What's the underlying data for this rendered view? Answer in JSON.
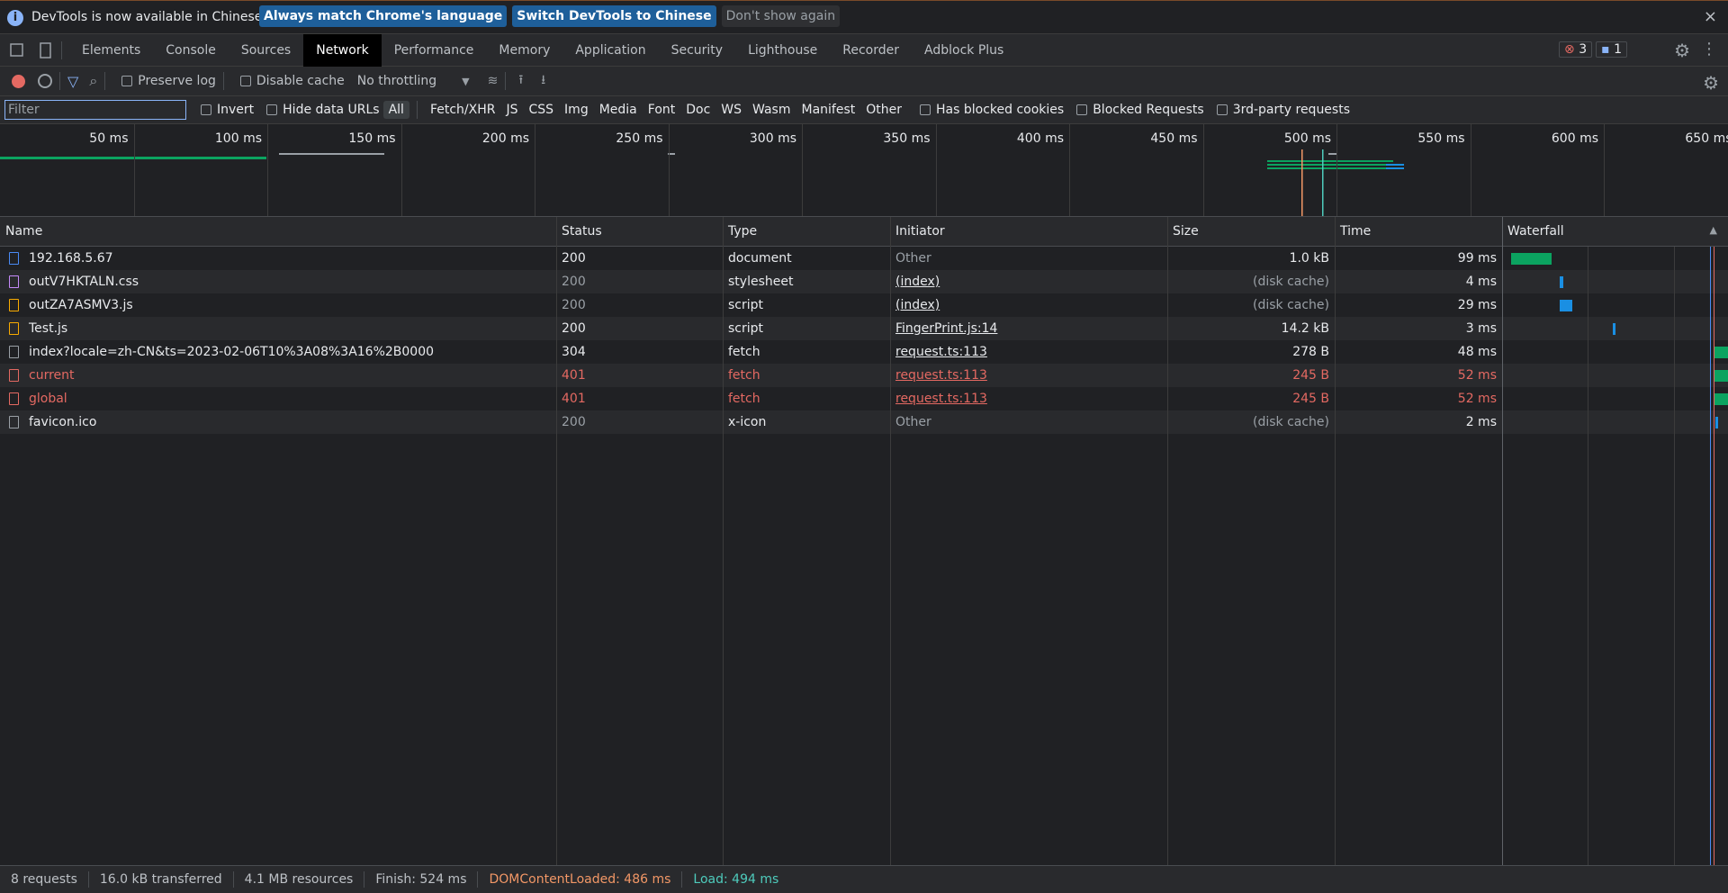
{
  "infobar": {
    "message": "DevTools is now available in Chinese!",
    "buttons": [
      "Always match Chrome's language",
      "Switch DevTools to Chinese",
      "Don't show again"
    ]
  },
  "tabs": [
    "Elements",
    "Console",
    "Sources",
    "Network",
    "Performance",
    "Memory",
    "Application",
    "Security",
    "Lighthouse",
    "Recorder",
    "Adblock Plus"
  ],
  "active_tab_index": 3,
  "badges": {
    "errors": "3",
    "messages": "1"
  },
  "toolbar": {
    "preserve_log": "Preserve log",
    "disable_cache": "Disable cache",
    "throttling": "No throttling"
  },
  "filterbar": {
    "placeholder": "Filter",
    "invert": "Invert",
    "hide_data_urls": "Hide data URLs",
    "types": [
      "All",
      "Fetch/XHR",
      "JS",
      "CSS",
      "Img",
      "Media",
      "Font",
      "Doc",
      "WS",
      "Wasm",
      "Manifest",
      "Other"
    ],
    "active_type_index": 0,
    "blocked_cookies": "Has blocked cookies",
    "blocked_requests": "Blocked Requests",
    "third_party": "3rd-party requests"
  },
  "overview": {
    "ticks": [
      "50 ms",
      "100 ms",
      "150 ms",
      "200 ms",
      "250 ms",
      "300 ms",
      "350 ms",
      "400 ms",
      "450 ms",
      "500 ms",
      "550 ms",
      "600 ms",
      "650 ms"
    ]
  },
  "table": {
    "columns": [
      "Name",
      "Status",
      "Type",
      "Initiator",
      "Size",
      "Time",
      "Waterfall"
    ],
    "rows": [
      [
        "192.168.5.67",
        "200",
        "document",
        "Other",
        "1.0 kB",
        "99 ms"
      ],
      [
        "outV7HKTALN.css",
        "200",
        "stylesheet",
        "(index)",
        "(disk cache)",
        "4 ms"
      ],
      [
        "outZA7ASMV3.js",
        "200",
        "script",
        "(index)",
        "(disk cache)",
        "29 ms"
      ],
      [
        "Test.js",
        "200",
        "script",
        "FingerPrint.js:14",
        "14.2 kB",
        "3 ms"
      ],
      [
        "index?locale=zh-CN&ts=2023-02-06T10%3A08%3A16%2B0000",
        "304",
        "fetch",
        "request.ts:113",
        "278 B",
        "48 ms"
      ],
      [
        "current",
        "401",
        "fetch",
        "request.ts:113",
        "245 B",
        "52 ms"
      ],
      [
        "global",
        "401",
        "fetch",
        "request.ts:113",
        "245 B",
        "52 ms"
      ],
      [
        "favicon.ico",
        "200",
        "x-icon",
        "Other",
        "(disk cache)",
        "2 ms"
      ]
    ],
    "error_rows": [
      5,
      6
    ]
  },
  "footer": [
    "8 requests",
    "16.0 kB transferred",
    "4.1 MB resources",
    "Finish: 524 ms",
    "DOMContentLoaded: 486 ms",
    "Load: 494 ms"
  ]
}
